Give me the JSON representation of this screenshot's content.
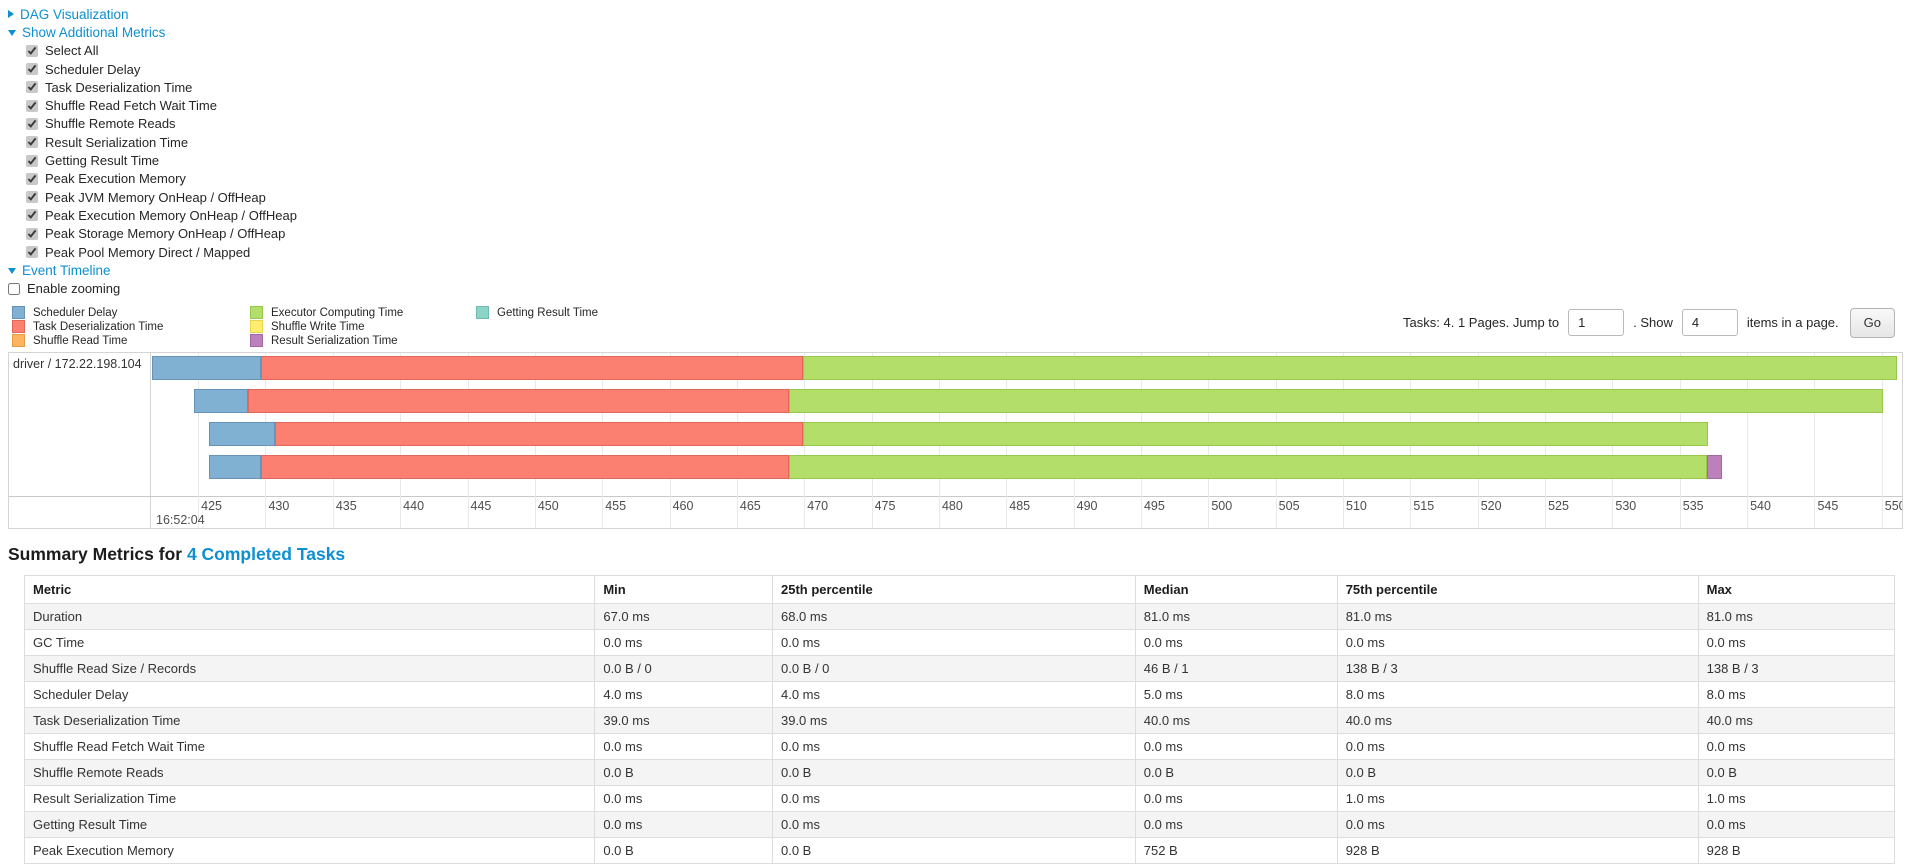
{
  "colors": {
    "link": "#0d8fd1",
    "scheduler_delay": {
      "fill": "#80B1D3",
      "border": "#6693b7"
    },
    "task_deserialization": {
      "fill": "#FB8072",
      "border": "#e2675b"
    },
    "shuffle_read": {
      "fill": "#FDB462",
      "border": "#e79b43"
    },
    "executor_computing": {
      "fill": "#B3DE69",
      "border": "#98c74c"
    },
    "shuffle_write": {
      "fill": "#FFED6F",
      "border": "#e8d44f"
    },
    "result_serialization": {
      "fill": "#BC80BD",
      "border": "#a268a4"
    },
    "getting_result": {
      "fill": "#8DD3C7",
      "border": "#6fbcae"
    }
  },
  "toggles": {
    "dag_label": "DAG Visualization",
    "metrics_label": "Show Additional Metrics",
    "event_timeline_label": "Event Timeline",
    "enable_zooming_label": "Enable zooming"
  },
  "additional_metrics": {
    "items": [
      {
        "label": "Select All",
        "checked": true
      },
      {
        "label": "Scheduler Delay",
        "checked": true
      },
      {
        "label": "Task Deserialization Time",
        "checked": true
      },
      {
        "label": "Shuffle Read Fetch Wait Time",
        "checked": true
      },
      {
        "label": "Shuffle Remote Reads",
        "checked": true
      },
      {
        "label": "Result Serialization Time",
        "checked": true
      },
      {
        "label": "Getting Result Time",
        "checked": true
      },
      {
        "label": "Peak Execution Memory",
        "checked": true
      },
      {
        "label": "Peak JVM Memory OnHeap / OffHeap",
        "checked": true
      },
      {
        "label": "Peak Execution Memory OnHeap / OffHeap",
        "checked": true
      },
      {
        "label": "Peak Storage Memory OnHeap / OffHeap",
        "checked": true
      },
      {
        "label": "Peak Pool Memory Direct / Mapped",
        "checked": true
      }
    ]
  },
  "legend": {
    "columns": [
      [
        {
          "label": "Scheduler Delay",
          "color": "scheduler_delay"
        },
        {
          "label": "Task Deserialization Time",
          "color": "task_deserialization"
        },
        {
          "label": "Shuffle Read Time",
          "color": "shuffle_read"
        }
      ],
      [
        {
          "label": "Executor Computing Time",
          "color": "executor_computing"
        },
        {
          "label": "Shuffle Write Time",
          "color": "shuffle_write"
        },
        {
          "label": "Result Serialization Time",
          "color": "result_serialization"
        }
      ],
      [
        {
          "label": "Getting Result Time",
          "color": "getting_result"
        }
      ]
    ]
  },
  "pagination": {
    "prefix": "Tasks: 4. 1 Pages. Jump to",
    "jump_value": "1",
    "show_label": ". Show",
    "show_value": "4",
    "suffix": "items in a page.",
    "go_label": "Go"
  },
  "timeline": {
    "row_label": "driver / 172.22.198.104",
    "axis": {
      "domain_min": 421.5,
      "domain_max": 551.5,
      "tick_min": 425,
      "tick_max": 550,
      "tick_step": 5,
      "major_label": "16:52:04"
    },
    "tasks": [
      {
        "segments": [
          {
            "type": "scheduler_delay",
            "start": 421.6,
            "end": 429.7
          },
          {
            "type": "task_deserialization",
            "start": 429.7,
            "end": 469.9
          },
          {
            "type": "executor_computing",
            "start": 469.9,
            "end": 551.1
          }
        ]
      },
      {
        "segments": [
          {
            "type": "scheduler_delay",
            "start": 424.7,
            "end": 428.7
          },
          {
            "type": "task_deserialization",
            "start": 428.7,
            "end": 468.9
          },
          {
            "type": "executor_computing",
            "start": 468.9,
            "end": 550.1
          }
        ]
      },
      {
        "segments": [
          {
            "type": "scheduler_delay",
            "start": 425.8,
            "end": 430.7
          },
          {
            "type": "task_deserialization",
            "start": 430.7,
            "end": 469.9
          },
          {
            "type": "executor_computing",
            "start": 469.9,
            "end": 537.1
          }
        ]
      },
      {
        "segments": [
          {
            "type": "scheduler_delay",
            "start": 425.8,
            "end": 429.7
          },
          {
            "type": "task_deserialization",
            "start": 429.7,
            "end": 468.9
          },
          {
            "type": "executor_computing",
            "start": 468.9,
            "end": 537.0
          },
          {
            "type": "result_serialization",
            "start": 537.0,
            "end": 538.1
          }
        ]
      }
    ]
  },
  "summary": {
    "heading_prefix": "Summary Metrics for ",
    "heading_link": "4 Completed Tasks",
    "table": {
      "columns": [
        "Metric",
        "Min",
        "25th percentile",
        "Median",
        "75th percentile",
        "Max"
      ],
      "col_widths": [
        "30.5%",
        "9.5%",
        "19.4%",
        "10.8%",
        "19.3%",
        "10.5%"
      ],
      "rows": [
        [
          "Duration",
          "67.0 ms",
          "68.0 ms",
          "81.0 ms",
          "81.0 ms",
          "81.0 ms"
        ],
        [
          "GC Time",
          "0.0 ms",
          "0.0 ms",
          "0.0 ms",
          "0.0 ms",
          "0.0 ms"
        ],
        [
          "Shuffle Read Size / Records",
          "0.0 B / 0",
          "0.0 B / 0",
          "46 B / 1",
          "138 B / 3",
          "138 B / 3"
        ],
        [
          "Scheduler Delay",
          "4.0 ms",
          "4.0 ms",
          "5.0 ms",
          "8.0 ms",
          "8.0 ms"
        ],
        [
          "Task Deserialization Time",
          "39.0 ms",
          "39.0 ms",
          "40.0 ms",
          "40.0 ms",
          "40.0 ms"
        ],
        [
          "Shuffle Read Fetch Wait Time",
          "0.0 ms",
          "0.0 ms",
          "0.0 ms",
          "0.0 ms",
          "0.0 ms"
        ],
        [
          "Shuffle Remote Reads",
          "0.0 B",
          "0.0 B",
          "0.0 B",
          "0.0 B",
          "0.0 B"
        ],
        [
          "Result Serialization Time",
          "0.0 ms",
          "0.0 ms",
          "0.0 ms",
          "1.0 ms",
          "1.0 ms"
        ],
        [
          "Getting Result Time",
          "0.0 ms",
          "0.0 ms",
          "0.0 ms",
          "0.0 ms",
          "0.0 ms"
        ],
        [
          "Peak Execution Memory",
          "0.0 B",
          "0.0 B",
          "752 B",
          "928 B",
          "928 B"
        ]
      ]
    }
  }
}
